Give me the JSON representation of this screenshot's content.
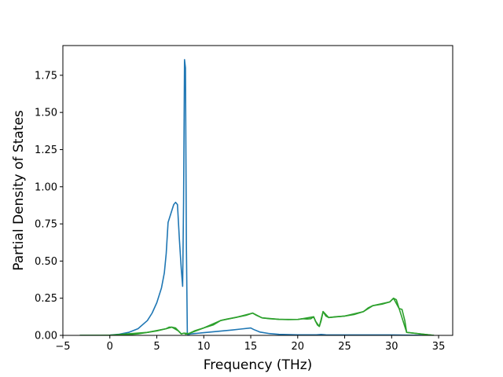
{
  "chart_data": {
    "type": "line",
    "title": "",
    "xlabel": "Frequency (THz)",
    "ylabel": "Partial Density of States",
    "xlim": [
      -5,
      36.5
    ],
    "ylim": [
      0,
      1.95
    ],
    "xticks": [
      -5,
      0,
      5,
      10,
      15,
      20,
      25,
      30,
      35
    ],
    "xtick_labels": [
      "−5",
      "0",
      "5",
      "10",
      "15",
      "20",
      "25",
      "30",
      "35"
    ],
    "yticks": [
      0,
      0.25,
      0.5,
      0.75,
      1.0,
      1.25,
      1.5,
      1.75
    ],
    "ytick_labels": [
      "0.00",
      "0.25",
      "0.50",
      "0.75",
      "1.00",
      "1.25",
      "1.50",
      "1.75"
    ],
    "grid": false,
    "legend": "none",
    "series": [
      {
        "color": "#1f77b4",
        "x": [
          -3.2,
          -1,
          0,
          1,
          2,
          3,
          4,
          4.5,
          5,
          5.5,
          5.8,
          6.0,
          6.2,
          6.4,
          6.6,
          6.8,
          7.0,
          7.2,
          7.4,
          7.6,
          7.75,
          7.85,
          7.95,
          8.05,
          8.15,
          8.25,
          8.3,
          8.6,
          9,
          10,
          11,
          12,
          13,
          14,
          15,
          15.3,
          16,
          17,
          18,
          20,
          22,
          22.5,
          23,
          25,
          28,
          30,
          31.5,
          34.5
        ],
        "y": [
          0,
          0,
          0.002,
          0.008,
          0.02,
          0.045,
          0.1,
          0.15,
          0.22,
          0.32,
          0.42,
          0.55,
          0.76,
          0.8,
          0.84,
          0.88,
          0.895,
          0.88,
          0.65,
          0.45,
          0.33,
          0.9,
          1.855,
          1.8,
          0.6,
          0.01,
          0.005,
          0.01,
          0.012,
          0.018,
          0.024,
          0.03,
          0.036,
          0.043,
          0.05,
          0.04,
          0.022,
          0.012,
          0.007,
          0.004,
          0.004,
          0.006,
          0.004,
          0.003,
          0.003,
          0.003,
          0.002,
          0
        ]
      },
      {
        "color": "#2ca02c",
        "x": [
          -3.2,
          -1,
          0,
          1,
          2,
          3,
          4,
          5,
          6,
          6.3,
          6.6,
          7,
          7.3,
          7.6,
          7.9,
          8.1,
          8.4,
          9,
          10,
          11,
          11.8,
          12.5,
          13.5,
          14.5,
          15.2,
          15.6,
          16.2,
          17,
          18,
          19,
          20,
          20.5,
          21,
          21.4,
          21.7,
          21.9,
          22.1,
          22.3,
          22.5,
          22.7,
          23,
          23.3,
          24,
          25,
          26,
          27,
          27.5,
          28,
          29,
          29.8,
          30.2,
          30.5,
          30.8,
          31.1,
          31.4,
          31.6,
          34.5
        ],
        "y": [
          0,
          0,
          0.001,
          0.002,
          0.005,
          0.01,
          0.02,
          0.03,
          0.045,
          0.055,
          0.055,
          0.05,
          0.03,
          0.01,
          0.015,
          0.008,
          0.012,
          0.03,
          0.05,
          0.07,
          0.1,
          0.11,
          0.122,
          0.135,
          0.15,
          0.135,
          0.118,
          0.112,
          0.108,
          0.106,
          0.107,
          0.112,
          0.11,
          0.112,
          0.125,
          0.095,
          0.07,
          0.06,
          0.1,
          0.16,
          0.13,
          0.12,
          0.125,
          0.13,
          0.14,
          0.16,
          0.185,
          0.2,
          0.21,
          0.225,
          0.25,
          0.24,
          0.18,
          0.175,
          0.1,
          0.02,
          0
        ]
      },
      {
        "color": "#2ca02c",
        "x": [
          -3.2,
          0,
          4,
          6,
          6.6,
          7.3,
          7.6,
          7.9,
          8.4,
          10,
          11.8,
          13.5,
          15.2,
          16.2,
          18,
          20,
          21.7,
          21.9,
          22.3,
          22.7,
          23.3,
          25,
          27,
          28,
          29.8,
          30.2,
          30.8,
          31.6,
          34.5
        ],
        "y": [
          0,
          0.001,
          0.02,
          0.045,
          0.055,
          0.03,
          0.01,
          0.015,
          0.012,
          0.05,
          0.1,
          0.122,
          0.15,
          0.118,
          0.108,
          0.107,
          0.125,
          0.095,
          0.06,
          0.16,
          0.12,
          0.13,
          0.16,
          0.2,
          0.225,
          0.25,
          0.18,
          0.02,
          0
        ]
      }
    ]
  }
}
